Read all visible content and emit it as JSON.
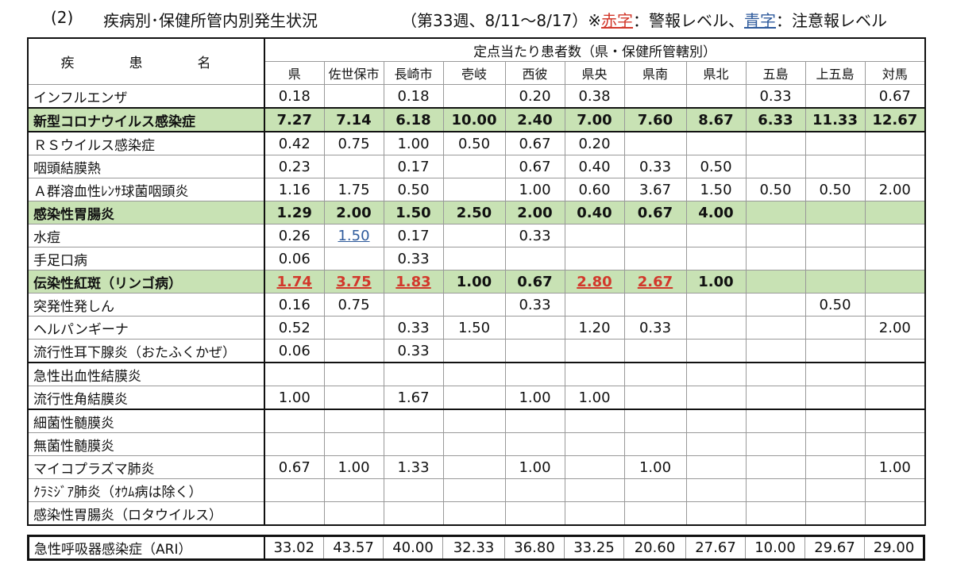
{
  "title": {
    "number": "(2)",
    "main": "疾病別･保健所管内別発生状況",
    "period": "（第33週、8/11～8/17）※",
    "red_label": "赤字",
    "red_desc": "：警報レベル、",
    "blue_label": "青字",
    "blue_desc": "：注意報レベル"
  },
  "table": {
    "disease_header": "疾　患　名",
    "group_header": "定点当たり患者数（県・保健所管轄別）",
    "columns": [
      "県",
      "佐世保市",
      "長崎市",
      "壱岐",
      "西彼",
      "県央",
      "県南",
      "県北",
      "五島",
      "上五島",
      "対馬"
    ],
    "rows": [
      {
        "name": "インフルエンザ",
        "values": [
          "0.18",
          "",
          "0.18",
          "",
          "0.20",
          "0.38",
          "",
          "",
          "0.33",
          "",
          "0.67"
        ]
      },
      {
        "name": "新型コロナウイルス感染症",
        "values": [
          "7.27",
          "7.14",
          "6.18",
          "10.00",
          "2.40",
          "7.00",
          "7.60",
          "8.67",
          "6.33",
          "11.33",
          "12.67"
        ]
      },
      {
        "name": "ＲＳウイルス感染症",
        "values": [
          "0.42",
          "0.75",
          "1.00",
          "0.50",
          "0.67",
          "0.20",
          "",
          "",
          "",
          "",
          ""
        ]
      },
      {
        "name": "咽頭結膜熱",
        "values": [
          "0.23",
          "",
          "0.17",
          "",
          "0.67",
          "0.40",
          "0.33",
          "0.50",
          "",
          "",
          ""
        ]
      },
      {
        "name": "Ａ群溶血性ﾚﾝｻ球菌咽頭炎",
        "values": [
          "1.16",
          "1.75",
          "0.50",
          "",
          "1.00",
          "0.60",
          "3.67",
          "1.50",
          "0.50",
          "0.50",
          "2.00"
        ]
      },
      {
        "name": "感染性胃腸炎",
        "values": [
          "1.29",
          "2.00",
          "1.50",
          "2.50",
          "2.00",
          "0.40",
          "0.67",
          "4.00",
          "",
          "",
          ""
        ]
      },
      {
        "name": "水痘",
        "values": [
          "0.26",
          "1.50",
          "0.17",
          "",
          "0.33",
          "",
          "",
          "",
          "",
          "",
          ""
        ]
      },
      {
        "name": "手足口病",
        "values": [
          "0.06",
          "",
          "0.33",
          "",
          "",
          "",
          "",
          "",
          "",
          "",
          ""
        ]
      },
      {
        "name": "伝染性紅斑（リンゴ病）",
        "values": [
          "1.74",
          "3.75",
          "1.83",
          "1.00",
          "0.67",
          "2.80",
          "2.67",
          "1.00",
          "",
          "",
          ""
        ]
      },
      {
        "name": "突発性発しん",
        "values": [
          "0.16",
          "0.75",
          "",
          "",
          "0.33",
          "",
          "",
          "",
          "",
          "0.50",
          ""
        ]
      },
      {
        "name": "ヘルパンギーナ",
        "values": [
          "0.52",
          "",
          "0.33",
          "1.50",
          "",
          "1.20",
          "0.33",
          "",
          "",
          "",
          "2.00"
        ]
      },
      {
        "name": "流行性耳下腺炎（おたふくかぜ）",
        "values": [
          "0.06",
          "",
          "0.33",
          "",
          "",
          "",
          "",
          "",
          "",
          "",
          ""
        ]
      },
      {
        "name": "急性出血性結膜炎",
        "values": [
          "",
          "",
          "",
          "",
          "",
          "",
          "",
          "",
          "",
          "",
          ""
        ]
      },
      {
        "name": "流行性角結膜炎",
        "values": [
          "1.00",
          "",
          "1.67",
          "",
          "1.00",
          "1.00",
          "",
          "",
          "",
          "",
          ""
        ]
      },
      {
        "name": "細菌性髄膜炎",
        "values": [
          "",
          "",
          "",
          "",
          "",
          "",
          "",
          "",
          "",
          "",
          ""
        ]
      },
      {
        "name": "無菌性髄膜炎",
        "values": [
          "",
          "",
          "",
          "",
          "",
          "",
          "",
          "",
          "",
          "",
          ""
        ]
      },
      {
        "name": "マイコプラズマ肺炎",
        "values": [
          "0.67",
          "1.00",
          "1.33",
          "",
          "1.00",
          "",
          "1.00",
          "",
          "",
          "",
          "1.00"
        ]
      },
      {
        "name": "ｸﾗﾐｼﾞｱ肺炎（ｵｳﾑ病は除く）",
        "values": [
          "",
          "",
          "",
          "",
          "",
          "",
          "",
          "",
          "",
          "",
          ""
        ]
      },
      {
        "name": "感染性胃腸炎（ロタウイルス）",
        "values": [
          "",
          "",
          "",
          "",
          "",
          "",
          "",
          "",
          "",
          "",
          ""
        ]
      }
    ],
    "ari": {
      "name": "急性呼吸器感染症（ARI）",
      "values": [
        "33.02",
        "43.57",
        "40.00",
        "32.33",
        "36.80",
        "33.25",
        "20.60",
        "27.67",
        "10.00",
        "29.67",
        "29.00"
      ]
    }
  },
  "colors": {
    "highlight_row": "#c8e2b4",
    "alert_red": "#d2382b",
    "caution_blue": "#2f5b9c"
  }
}
